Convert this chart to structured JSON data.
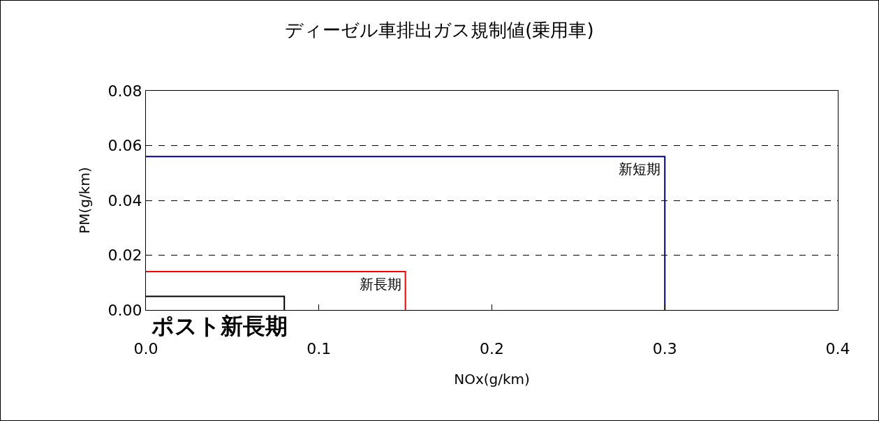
{
  "chart_data": {
    "type": "line",
    "title": "ディーゼル車排出ガス規制値(乗用車)",
    "xlabel": "NOx(g/km)",
    "ylabel": "PM(g/km)",
    "xlim": [
      0,
      0.4
    ],
    "xticks": [
      {
        "value": 0,
        "label": "0.0"
      },
      0.1,
      0.2,
      0.3,
      0.4
    ],
    "ylim": [
      0,
      0.08
    ],
    "yticks": [
      {
        "value": 0,
        "label": "0.00"
      },
      {
        "value": 0.02,
        "label": "0.02"
      },
      {
        "value": 0.04,
        "label": "0.04"
      },
      {
        "value": 0.06,
        "label": "0.06"
      },
      {
        "value": 0.08,
        "label": "0.08"
      }
    ],
    "grid": "y",
    "legend": false,
    "marker": "none",
    "line_style": "solid",
    "series": [
      {
        "name": "新短期",
        "color": "#000080",
        "x": [
          0,
          0.3,
          0.3
        ],
        "values": [
          0.056,
          0.056,
          0
        ]
      },
      {
        "name": "新長期",
        "color": "#ff0000",
        "x": [
          0,
          0.15,
          0.15
        ],
        "values": [
          0.014,
          0.014,
          0
        ]
      },
      {
        "name": "ポスト新長期",
        "color": "#000000",
        "x": [
          0,
          0.08,
          0.08
        ],
        "values": [
          0.005,
          0.005,
          0
        ]
      }
    ]
  }
}
